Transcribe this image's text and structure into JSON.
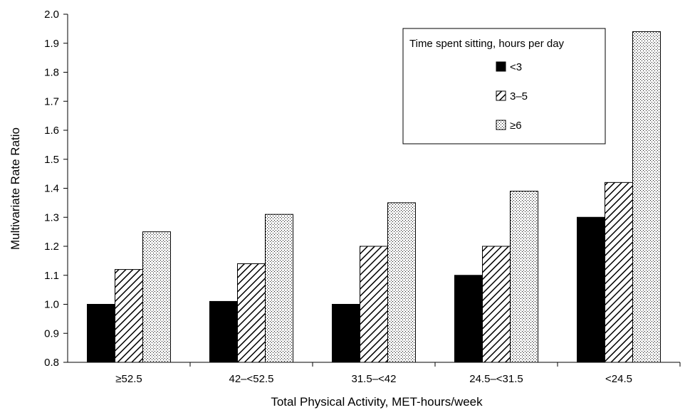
{
  "chart_data": {
    "type": "bar",
    "title": "",
    "xlabel": "Total Physical Activity, MET-hours/week",
    "ylabel": "Multivariate Rate Ratio",
    "ylim": [
      0.8,
      2.0
    ],
    "ytick_step": 0.1,
    "yticks": [
      "0.8",
      "0.9",
      "1.0",
      "1.1",
      "1.2",
      "1.3",
      "1.4",
      "1.5",
      "1.6",
      "1.7",
      "1.8",
      "1.9",
      "2.0"
    ],
    "categories": [
      "≥52.5",
      "42–<52.5",
      "31.5–<42",
      "24.5–<31.5",
      "<24.5"
    ],
    "series": [
      {
        "name": "<3",
        "values": [
          1.0,
          1.01,
          1.0,
          1.1,
          1.3
        ],
        "fill": "solid",
        "color": "#000000"
      },
      {
        "name": "3–5",
        "values": [
          1.12,
          1.14,
          1.2,
          1.2,
          1.42
        ],
        "fill": "diagonal-hatch",
        "color": "#000000"
      },
      {
        "name": "≥6",
        "values": [
          1.25,
          1.31,
          1.35,
          1.39,
          1.94
        ],
        "fill": "dotted",
        "color": "#000000"
      }
    ],
    "legend": {
      "title": "Time spent sitting, hours per day",
      "position": "top-right"
    },
    "grid": false
  }
}
